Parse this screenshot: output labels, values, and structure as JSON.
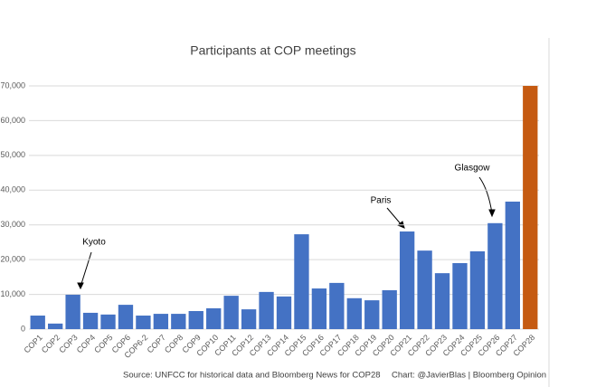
{
  "chart_data": {
    "type": "bar",
    "title": "Participants at COP meetings",
    "categories": [
      "COP1",
      "COP2",
      "COP3",
      "COP4",
      "COP5",
      "COP6",
      "COP6-2",
      "COP7",
      "COP8",
      "COP9",
      "COP10",
      "COP11",
      "COP12",
      "COP13",
      "COP14",
      "COP15",
      "COP16",
      "COP17",
      "COP18",
      "COP19",
      "COP20",
      "COP21",
      "COP22",
      "COP23",
      "COP24",
      "COP25",
      "COP26",
      "COP27",
      "COP28"
    ],
    "values": [
      3900,
      1600,
      9900,
      4700,
      4200,
      7000,
      3900,
      4400,
      4400,
      5200,
      6000,
      9600,
      5700,
      10700,
      9400,
      27300,
      11700,
      13300,
      8900,
      8300,
      11200,
      28100,
      22600,
      16100,
      19000,
      22400,
      30500,
      36700,
      70000
    ],
    "colors": [
      "#4472c4",
      "#4472c4",
      "#4472c4",
      "#4472c4",
      "#4472c4",
      "#4472c4",
      "#4472c4",
      "#4472c4",
      "#4472c4",
      "#4472c4",
      "#4472c4",
      "#4472c4",
      "#4472c4",
      "#4472c4",
      "#4472c4",
      "#4472c4",
      "#4472c4",
      "#4472c4",
      "#4472c4",
      "#4472c4",
      "#4472c4",
      "#4472c4",
      "#4472c4",
      "#4472c4",
      "#4472c4",
      "#4472c4",
      "#4472c4",
      "#4472c4",
      "#c55a11"
    ],
    "ylim": [
      0,
      70000
    ],
    "yticks": [
      0,
      {
        "value": 10000,
        "label": "10,000"
      },
      {
        "value": 20000,
        "label": "20,000"
      },
      {
        "value": 30000,
        "label": "30,000"
      },
      {
        "value": 40000,
        "label": "40,000"
      },
      {
        "value": 50000,
        "label": "50,000"
      },
      {
        "value": 60000,
        "label": "60,000"
      },
      {
        "value": 70000,
        "label": "70,000"
      }
    ],
    "grid": true,
    "annotations": [
      "Kyoto",
      "Paris",
      "Glasgow"
    ],
    "source": "Source: UNFCC for historical data and Bloomberg News for COP28",
    "credit": "Chart: @JavierBlas | Bloomberg Opinion"
  }
}
